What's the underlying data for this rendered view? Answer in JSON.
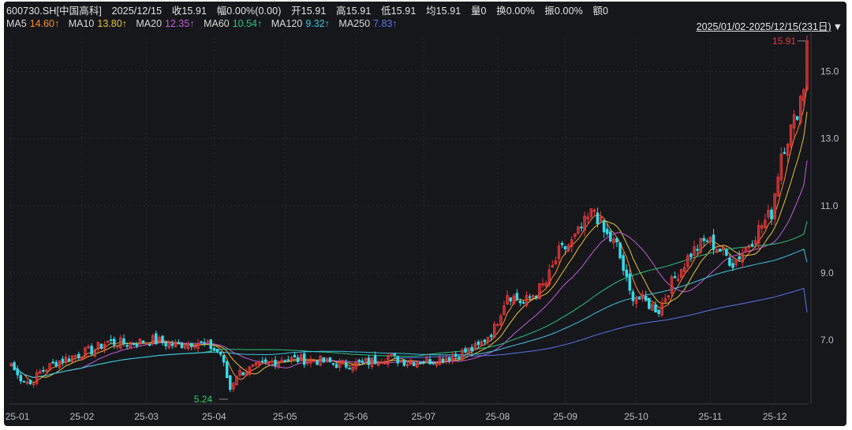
{
  "header": {
    "symbol": "600730.SH[中国高科]",
    "date": "2025/12/15",
    "close": "收15.91",
    "change": "幅0.00%(0.00)",
    "open": "开15.91",
    "high": "高15.91",
    "low": "低15.91",
    "avg": "均15.91",
    "volume": "量0",
    "turnover": "换0.00%",
    "amplitude": "振0.00%",
    "amount": "额0"
  },
  "ma_legend": [
    {
      "name": "MA5",
      "value": "14.60↑",
      "color": "#ff8c2a"
    },
    {
      "name": "MA10",
      "value": "13.80↑",
      "color": "#e8c23a"
    },
    {
      "name": "MA20",
      "value": "12.35↑",
      "color": "#c55cd6"
    },
    {
      "name": "MA60",
      "value": "10.54↑",
      "color": "#27c281"
    },
    {
      "name": "MA120",
      "value": "9.32↑",
      "color": "#3ec3e0"
    },
    {
      "name": "MA250",
      "value": "7.83↑",
      "color": "#5a74ea"
    }
  ],
  "range_label": "2025/01/02-2025/12/15(231日)",
  "range_arrow": "▼",
  "colors": {
    "up": "#e5383b",
    "down": "#38d8e6",
    "bg": "#16171b",
    "grid": "#2a2c33",
    "axis_text": "#b9bcc4"
  },
  "chart_data": {
    "type": "candlestick",
    "y_ticks": [
      7.0,
      9.0,
      11.0,
      13.0,
      15.0
    ],
    "x_ticks": [
      "25-01",
      "25-02",
      "25-03",
      "25-04",
      "25-05",
      "25-06",
      "25-07",
      "25-08",
      "25-09",
      "25-10",
      "25-11",
      "25-12"
    ],
    "ylim": [
      5.1,
      16.0
    ],
    "max_label": "15.91",
    "min_label": "5.24",
    "anchors": [
      [
        "25-01-02",
        6.3
      ],
      [
        "25-01-06",
        5.95
      ],
      [
        "25-01-10",
        5.7
      ],
      [
        "25-01-15",
        6.05
      ],
      [
        "25-01-22",
        6.35
      ],
      [
        "25-02-06",
        6.7
      ],
      [
        "25-02-13",
        6.95
      ],
      [
        "25-02-21",
        6.9
      ],
      [
        "25-03-05",
        7.0
      ],
      [
        "25-03-14",
        6.85
      ],
      [
        "25-03-24",
        6.95
      ],
      [
        "25-03-31",
        6.8
      ],
      [
        "25-04-03",
        6.6
      ],
      [
        "25-04-07",
        5.9
      ],
      [
        "25-04-08",
        5.55
      ],
      [
        "25-04-10",
        6.0
      ],
      [
        "25-04-18",
        6.2
      ],
      [
        "25-04-30",
        6.45
      ],
      [
        "25-05-15",
        6.4
      ],
      [
        "25-05-27",
        6.25
      ],
      [
        "25-06-06",
        6.35
      ],
      [
        "25-06-16",
        6.5
      ],
      [
        "25-06-24",
        6.35
      ],
      [
        "25-07-04",
        6.4
      ],
      [
        "25-07-15",
        6.55
      ],
      [
        "25-07-24",
        6.8
      ],
      [
        "25-07-31",
        7.35
      ],
      [
        "25-08-06",
        8.4
      ],
      [
        "25-08-13",
        8.1
      ],
      [
        "25-08-22",
        8.7
      ],
      [
        "25-08-28",
        9.6
      ],
      [
        "25-09-03",
        9.9
      ],
      [
        "25-09-10",
        10.6
      ],
      [
        "25-09-12",
        10.9
      ],
      [
        "25-09-17",
        10.2
      ],
      [
        "25-09-23",
        9.8
      ],
      [
        "25-09-29",
        8.4
      ],
      [
        "25-10-10",
        7.9
      ],
      [
        "25-10-16",
        8.7
      ],
      [
        "25-10-24",
        9.6
      ],
      [
        "25-10-31",
        10.0
      ],
      [
        "25-11-07",
        9.6
      ],
      [
        "25-11-12",
        9.3
      ],
      [
        "25-11-18",
        9.75
      ],
      [
        "25-11-24",
        10.3
      ],
      [
        "25-11-28",
        10.8
      ],
      [
        "25-12-03",
        12.6
      ],
      [
        "25-12-09",
        13.5
      ],
      [
        "25-12-12",
        14.6
      ],
      [
        "25-12-15",
        15.91
      ]
    ],
    "ma_series": [
      {
        "name": "MA5",
        "color": "#ff8c2a",
        "window": 5,
        "final": 14.6
      },
      {
        "name": "MA10",
        "color": "#e8c23a",
        "window": 10,
        "final": 13.8
      },
      {
        "name": "MA20",
        "color": "#c55cd6",
        "window": 20,
        "final": 12.35
      },
      {
        "name": "MA60",
        "color": "#27c281",
        "window": 60,
        "final": 10.54
      },
      {
        "name": "MA120",
        "color": "#3ec3e0",
        "window": 120,
        "final": 9.32
      },
      {
        "name": "MA250",
        "color": "#5a74ea",
        "window": 250,
        "final": 7.83
      }
    ]
  }
}
